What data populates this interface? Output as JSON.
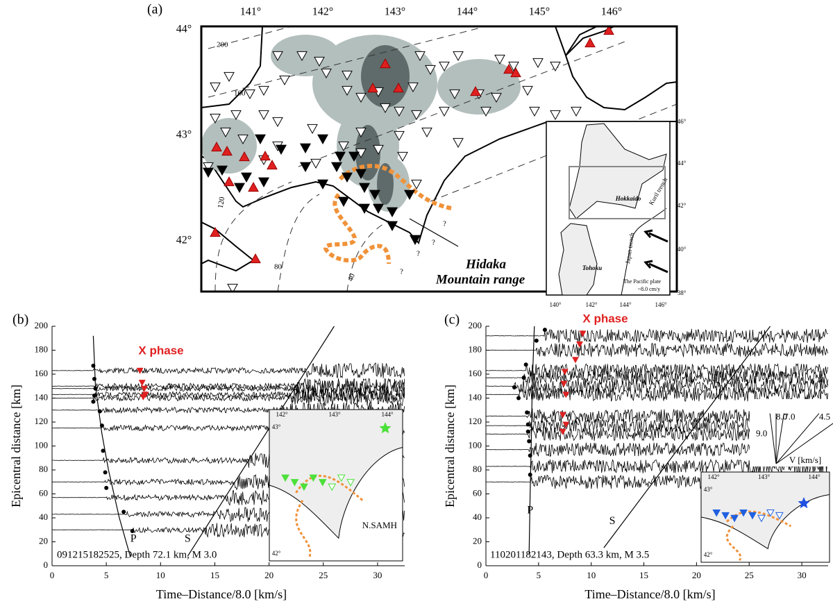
{
  "map": {
    "panel_label": "(a)",
    "lon_labels": [
      "141°",
      "142°",
      "143°",
      "144°",
      "145°",
      "146°"
    ],
    "lat_labels": [
      "44°",
      "43°",
      "42°"
    ],
    "contour_labels": [
      "200",
      "160",
      "120",
      "80",
      "40"
    ],
    "feature_label": [
      "Hidaka",
      "Mountain range"
    ],
    "question_mark": "?",
    "inset": {
      "region_labels": [
        "Hokkaido",
        "Tohoku"
      ],
      "trench_labels": [
        "Kuril trench",
        "Japan trench"
      ],
      "plate_label": [
        "The Pacific plate",
        "~8.0 cm/y"
      ],
      "lat_labels": [
        "46°",
        "44°",
        "42°",
        "40°",
        "38°"
      ],
      "lon_labels": [
        "140°",
        "142°",
        "144°",
        "146°"
      ]
    }
  },
  "chart_data": [
    {
      "type": "seismogram",
      "panel_label": "(b)",
      "xlabel": "Time–Distance/8.0 [km/s]",
      "ylabel": "Epicentral distance [km]",
      "xlim": [
        0,
        32.5
      ],
      "xticks": [
        0,
        5,
        10,
        15,
        20,
        25,
        30
      ],
      "ylim": [
        0,
        200
      ],
      "yticks": [
        0,
        20,
        40,
        60,
        80,
        100,
        120,
        140,
        160,
        180,
        200
      ],
      "annotation": "X phase",
      "caption": "091215182525, Depth 72.1 km, M 3.0",
      "phase_labels": [
        "P",
        "S"
      ],
      "traces": {
        "distance": [
          163,
          150,
          148,
          143,
          140,
          130,
          115,
          88,
          70,
          57,
          43,
          30
        ]
      },
      "p_picks": {
        "x": [
          3.8,
          3.9,
          4.0,
          3.9,
          3.8,
          4.4,
          4.6,
          4.7,
          4.9,
          5.0,
          6.6,
          7.4
        ],
        "values": [
          167,
          156,
          148,
          142,
          137,
          129,
          117,
          96,
          78,
          65,
          45,
          29
        ]
      },
      "x_picks": {
        "x": [
          8.1,
          8.3,
          8.5,
          8.6,
          8.4
        ],
        "values": [
          163,
          153,
          148,
          143,
          141
        ]
      },
      "inset": {
        "lon_labels": [
          "142°",
          "143°",
          "144°"
        ],
        "lat_labels": [
          "43°",
          "42°"
        ],
        "station_label": "N.SAMH"
      }
    },
    {
      "type": "seismogram",
      "panel_label": "(c)",
      "xlabel": "Time–Distance/8.0 [km/s]",
      "ylabel": "Epicentral distance [km]",
      "xlim": [
        0,
        32.5
      ],
      "xticks": [
        0,
        5,
        10,
        15,
        20,
        25,
        30
      ],
      "ylim": [
        0,
        200
      ],
      "yticks": [
        0,
        20,
        40,
        60,
        80,
        100,
        120,
        140,
        160,
        180,
        200
      ],
      "annotation": "X phase",
      "caption": "110201182143, Depth 63.3 km, M 3.5",
      "phase_labels": [
        "P",
        "S"
      ],
      "traces": {
        "distance": [
          192,
          180,
          163,
          157,
          150,
          143,
          125,
          117,
          110,
          97,
          83,
          70
        ]
      },
      "p_picks": {
        "x": [
          5.6,
          4.8,
          3.8,
          3.6,
          2.7,
          3.1,
          3.9,
          4.0,
          4.0,
          4.1,
          4.2,
          4.2
        ],
        "values": [
          197,
          188,
          168,
          157,
          149,
          140,
          128,
          118,
          112,
          104,
          92,
          76
        ]
      },
      "x_picks": {
        "x": [
          9.2,
          8.9,
          8.5,
          7.5,
          7.4,
          7.6,
          7.3,
          7.6,
          7.3
        ],
        "values": [
          194,
          185,
          172,
          162,
          152,
          143,
          126,
          118,
          112
        ]
      },
      "velocities": [
        {
          "value": 8.0,
          "label": "8.0"
        },
        {
          "value": 7.0,
          "label": "7.0"
        },
        {
          "value": 4.5,
          "label": "4.5"
        },
        {
          "value": 3.5,
          "label": "3.5"
        },
        {
          "value": 9.0,
          "label": "9.0"
        }
      ],
      "velocity_label": "V [km/s]",
      "inset": {
        "lon_labels": [
          "142°",
          "143°",
          "144°"
        ],
        "lat_labels": [
          "43°",
          "42°"
        ]
      }
    }
  ]
}
